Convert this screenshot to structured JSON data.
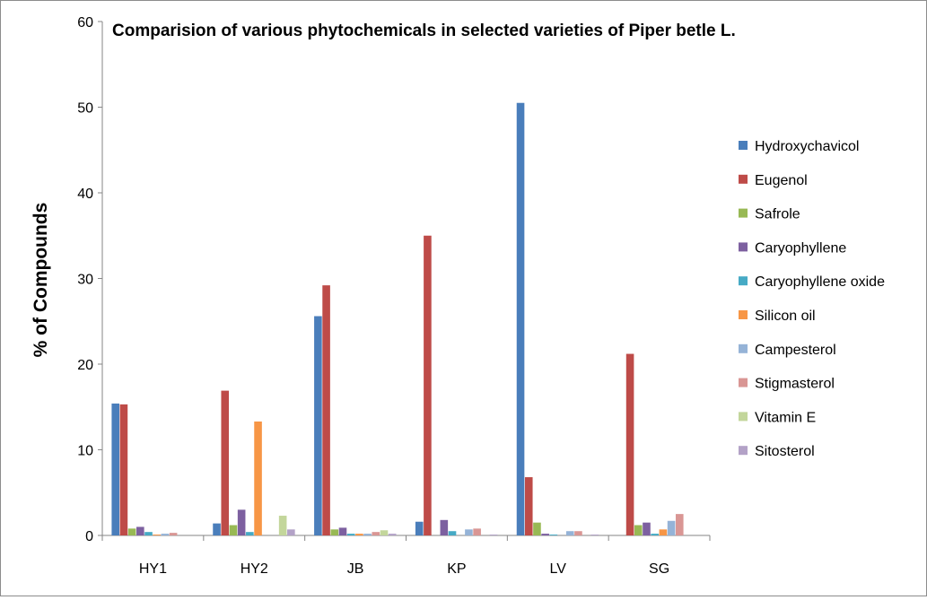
{
  "chart_data": {
    "type": "bar",
    "title": "Comparision of various phytochemicals in selected varieties of Piper betle L.",
    "xlabel": "",
    "ylabel": "% of Compounds",
    "ylim": [
      0,
      60
    ],
    "yticks": [
      0,
      10,
      20,
      30,
      40,
      50,
      60
    ],
    "grid": false,
    "legend_position": "right",
    "categories": [
      "HY1",
      "HY2",
      "JB",
      "KP",
      "LV",
      "SG"
    ],
    "series": [
      {
        "name": "Hydroxychavicol",
        "color": "#4a7ebb",
        "values": [
          15.4,
          1.4,
          25.6,
          1.6,
          50.5,
          0
        ]
      },
      {
        "name": "Eugenol",
        "color": "#be4b48",
        "values": [
          15.3,
          16.9,
          29.2,
          35.0,
          6.8,
          21.2
        ]
      },
      {
        "name": "Safrole",
        "color": "#98b954",
        "values": [
          0.8,
          1.2,
          0.7,
          0,
          1.5,
          1.2
        ]
      },
      {
        "name": "Caryophyllene",
        "color": "#7d60a0",
        "values": [
          1.0,
          3.0,
          0.9,
          1.8,
          0.2,
          1.5
        ]
      },
      {
        "name": "Caryophyllene oxide",
        "color": "#46aac5",
        "values": [
          0.4,
          0.4,
          0.2,
          0.5,
          0.1,
          0.2
        ]
      },
      {
        "name": "Silicon oil",
        "color": "#f79646",
        "values": [
          0.1,
          13.3,
          0.2,
          0,
          0,
          0.7
        ]
      },
      {
        "name": "Campesterol",
        "color": "#95b3d7",
        "values": [
          0.2,
          0,
          0.2,
          0.7,
          0.5,
          1.7
        ]
      },
      {
        "name": "Stigmasterol",
        "color": "#d99694",
        "values": [
          0.3,
          0,
          0.4,
          0.8,
          0.5,
          2.5
        ]
      },
      {
        "name": "Vitamin E",
        "color": "#c3d69b",
        "values": [
          0,
          2.3,
          0.6,
          0,
          0,
          0
        ]
      },
      {
        "name": "Sitosterol",
        "color": "#b3a2c7",
        "values": [
          0,
          0.7,
          0.2,
          0.1,
          0.1,
          0
        ]
      }
    ]
  }
}
